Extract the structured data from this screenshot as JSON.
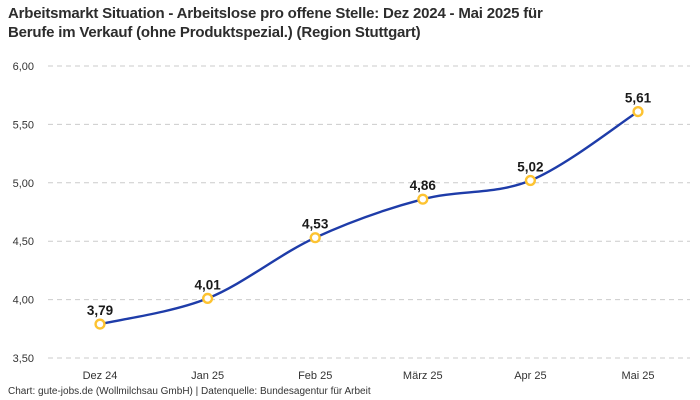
{
  "header": {
    "title_line1": "Arbeitsmarkt Situation - Arbeitslose pro offene Stelle: Dez 2024 - Mai 2025 für",
    "title_line2": "Berufe im Verkauf (ohne Produktspezial.) (Region Stuttgart)"
  },
  "footer": {
    "credit": "Chart: gute-jobs.de (Wollmilchsau GmbH) | Datenquelle: Bundesagentur für Arbeit"
  },
  "chart_data": {
    "type": "line",
    "title": "Arbeitsmarkt Situation - Arbeitslose pro offene Stelle: Dez 2024 - Mai 2025 für Berufe im Verkauf (ohne Produktspezial.) (Region Stuttgart)",
    "categories": [
      "Dez 24",
      "Jan 25",
      "Feb 25",
      "März 25",
      "Apr 25",
      "Mai 25"
    ],
    "values": [
      3.79,
      4.01,
      4.53,
      4.86,
      5.02,
      5.61
    ],
    "point_labels": [
      "3,79",
      "4,01",
      "4,53",
      "4,86",
      "5,02",
      "5,61"
    ],
    "xlabel": "",
    "ylabel": "",
    "ylim": [
      3.5,
      6.0
    ],
    "yticks": [
      3.5,
      4.0,
      4.5,
      5.0,
      5.5,
      6.0
    ],
    "ytick_labels": [
      "3,50",
      "4,00",
      "4,50",
      "5,00",
      "5,50",
      "6,00"
    ],
    "grid": "horizontal-dashed",
    "legend": "none",
    "line_color": "#1e3ca9",
    "marker_ring_color": "#fdc331",
    "marker_fill_color": "#ffffff",
    "grid_color": "#cbcbcb"
  }
}
